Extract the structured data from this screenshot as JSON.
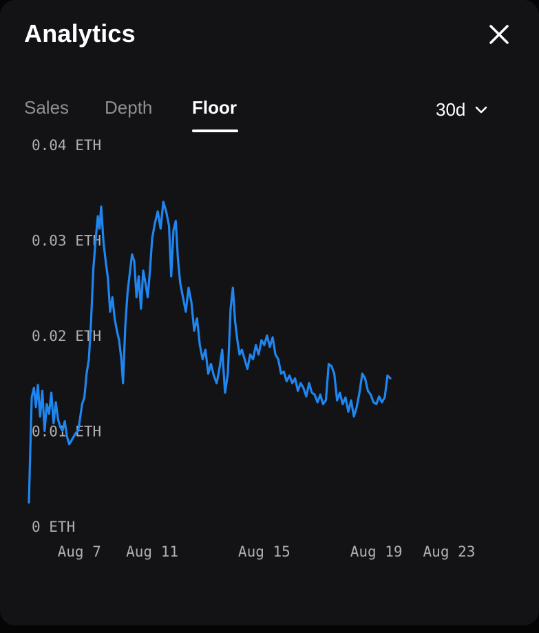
{
  "header": {
    "title": "Analytics"
  },
  "tabs": [
    {
      "label": "Sales",
      "active": false
    },
    {
      "label": "Depth",
      "active": false
    },
    {
      "label": "Floor",
      "active": true
    }
  ],
  "range_selector": {
    "value": "30d"
  },
  "icons": {
    "close": "close-icon",
    "dropdown": "chevron-down-icon"
  },
  "colors": {
    "line": "#1f86f0",
    "background": "#131316",
    "text": "#ffffff",
    "muted": "#8e8e95"
  },
  "chart_data": {
    "type": "line",
    "y_unit": "ETH",
    "ylim": [
      0,
      0.04
    ],
    "y_ticks": [
      {
        "value": 0.04,
        "label": "0.04 ETH"
      },
      {
        "value": 0.03,
        "label": "0.03 ETH"
      },
      {
        "value": 0.02,
        "label": "0.02 ETH"
      },
      {
        "value": 0.01,
        "label": "0.01 ETH"
      },
      {
        "value": 0,
        "label": "0 ETH"
      }
    ],
    "x_ticks": [
      {
        "value": 7,
        "label": "Aug 7"
      },
      {
        "value": 9.6,
        "label": "Aug 11"
      },
      {
        "value": 13.6,
        "label": "Aug 15"
      },
      {
        "value": 17.6,
        "label": "Aug 19"
      },
      {
        "value": 20.2,
        "label": "Aug 23"
      }
    ],
    "xlim": [
      5.2,
      22.4
    ],
    "grid": false,
    "series": [
      {
        "values": [
          [
            5.2,
            0.0025
          ],
          [
            5.25,
            0.008
          ],
          [
            5.3,
            0.0135
          ],
          [
            5.38,
            0.0145
          ],
          [
            5.45,
            0.0125
          ],
          [
            5.52,
            0.0148
          ],
          [
            5.6,
            0.0115
          ],
          [
            5.68,
            0.0142
          ],
          [
            5.76,
            0.01
          ],
          [
            5.84,
            0.0128
          ],
          [
            5.92,
            0.0118
          ],
          [
            6.0,
            0.014
          ],
          [
            6.08,
            0.0108
          ],
          [
            6.16,
            0.013
          ],
          [
            6.24,
            0.0112
          ],
          [
            6.32,
            0.0104
          ],
          [
            6.4,
            0.01
          ],
          [
            6.48,
            0.011
          ],
          [
            6.56,
            0.0094
          ],
          [
            6.64,
            0.0086
          ],
          [
            6.72,
            0.009
          ],
          [
            6.8,
            0.0094
          ],
          [
            6.88,
            0.0098
          ],
          [
            6.96,
            0.01
          ],
          [
            7.02,
            0.0112
          ],
          [
            7.1,
            0.0128
          ],
          [
            7.18,
            0.0135
          ],
          [
            7.26,
            0.016
          ],
          [
            7.34,
            0.0175
          ],
          [
            7.42,
            0.0215
          ],
          [
            7.5,
            0.027
          ],
          [
            7.58,
            0.03
          ],
          [
            7.66,
            0.0325
          ],
          [
            7.72,
            0.0312
          ],
          [
            7.78,
            0.0335
          ],
          [
            7.86,
            0.0298
          ],
          [
            7.94,
            0.0278
          ],
          [
            8.02,
            0.026
          ],
          [
            8.1,
            0.0225
          ],
          [
            8.18,
            0.024
          ],
          [
            8.26,
            0.0218
          ],
          [
            8.34,
            0.0205
          ],
          [
            8.42,
            0.0195
          ],
          [
            8.5,
            0.0175
          ],
          [
            8.56,
            0.015
          ],
          [
            8.64,
            0.021
          ],
          [
            8.72,
            0.0245
          ],
          [
            8.8,
            0.0265
          ],
          [
            8.88,
            0.0285
          ],
          [
            8.96,
            0.0278
          ],
          [
            9.04,
            0.024
          ],
          [
            9.12,
            0.0262
          ],
          [
            9.2,
            0.0228
          ],
          [
            9.28,
            0.0268
          ],
          [
            9.36,
            0.0255
          ],
          [
            9.44,
            0.024
          ],
          [
            9.52,
            0.0268
          ],
          [
            9.6,
            0.0302
          ],
          [
            9.7,
            0.0318
          ],
          [
            9.8,
            0.033
          ],
          [
            9.9,
            0.0312
          ],
          [
            10.0,
            0.034
          ],
          [
            10.1,
            0.033
          ],
          [
            10.2,
            0.0315
          ],
          [
            10.28,
            0.0262
          ],
          [
            10.36,
            0.031
          ],
          [
            10.44,
            0.032
          ],
          [
            10.52,
            0.028
          ],
          [
            10.6,
            0.0255
          ],
          [
            10.7,
            0.024
          ],
          [
            10.8,
            0.0225
          ],
          [
            10.9,
            0.025
          ],
          [
            11.0,
            0.0235
          ],
          [
            11.1,
            0.0205
          ],
          [
            11.2,
            0.0218
          ],
          [
            11.3,
            0.019
          ],
          [
            11.4,
            0.0175
          ],
          [
            11.5,
            0.0185
          ],
          [
            11.6,
            0.016
          ],
          [
            11.7,
            0.017
          ],
          [
            11.8,
            0.0158
          ],
          [
            11.9,
            0.015
          ],
          [
            12.0,
            0.0165
          ],
          [
            12.1,
            0.0185
          ],
          [
            12.2,
            0.014
          ],
          [
            12.3,
            0.016
          ],
          [
            12.4,
            0.0228
          ],
          [
            12.48,
            0.025
          ],
          [
            12.56,
            0.0215
          ],
          [
            12.64,
            0.0195
          ],
          [
            12.72,
            0.018
          ],
          [
            12.8,
            0.0185
          ],
          [
            12.9,
            0.0175
          ],
          [
            13.0,
            0.0165
          ],
          [
            13.1,
            0.018
          ],
          [
            13.2,
            0.0175
          ],
          [
            13.3,
            0.019
          ],
          [
            13.4,
            0.018
          ],
          [
            13.5,
            0.0195
          ],
          [
            13.6,
            0.019
          ],
          [
            13.7,
            0.02
          ],
          [
            13.8,
            0.0188
          ],
          [
            13.9,
            0.0198
          ],
          [
            14.0,
            0.018
          ],
          [
            14.1,
            0.0175
          ],
          [
            14.2,
            0.016
          ],
          [
            14.3,
            0.0162
          ],
          [
            14.4,
            0.0152
          ],
          [
            14.5,
            0.0158
          ],
          [
            14.6,
            0.015
          ],
          [
            14.7,
            0.0155
          ],
          [
            14.8,
            0.0142
          ],
          [
            14.9,
            0.015
          ],
          [
            15.0,
            0.0145
          ],
          [
            15.1,
            0.0136
          ],
          [
            15.2,
            0.015
          ],
          [
            15.3,
            0.014
          ],
          [
            15.4,
            0.0138
          ],
          [
            15.5,
            0.013
          ],
          [
            15.6,
            0.0138
          ],
          [
            15.7,
            0.0128
          ],
          [
            15.8,
            0.0132
          ],
          [
            15.9,
            0.017
          ],
          [
            16.0,
            0.0168
          ],
          [
            16.1,
            0.016
          ],
          [
            16.2,
            0.0132
          ],
          [
            16.3,
            0.014
          ],
          [
            16.4,
            0.0128
          ],
          [
            16.5,
            0.0135
          ],
          [
            16.6,
            0.012
          ],
          [
            16.7,
            0.0132
          ],
          [
            16.8,
            0.0115
          ],
          [
            16.9,
            0.0125
          ],
          [
            17.0,
            0.014
          ],
          [
            17.1,
            0.016
          ],
          [
            17.2,
            0.0155
          ],
          [
            17.3,
            0.0142
          ],
          [
            17.4,
            0.0138
          ],
          [
            17.5,
            0.013
          ],
          [
            17.6,
            0.0128
          ],
          [
            17.7,
            0.0136
          ],
          [
            17.8,
            0.013
          ],
          [
            17.9,
            0.0135
          ],
          [
            18.0,
            0.0158
          ],
          [
            18.1,
            0.0155
          ]
        ]
      }
    ]
  }
}
